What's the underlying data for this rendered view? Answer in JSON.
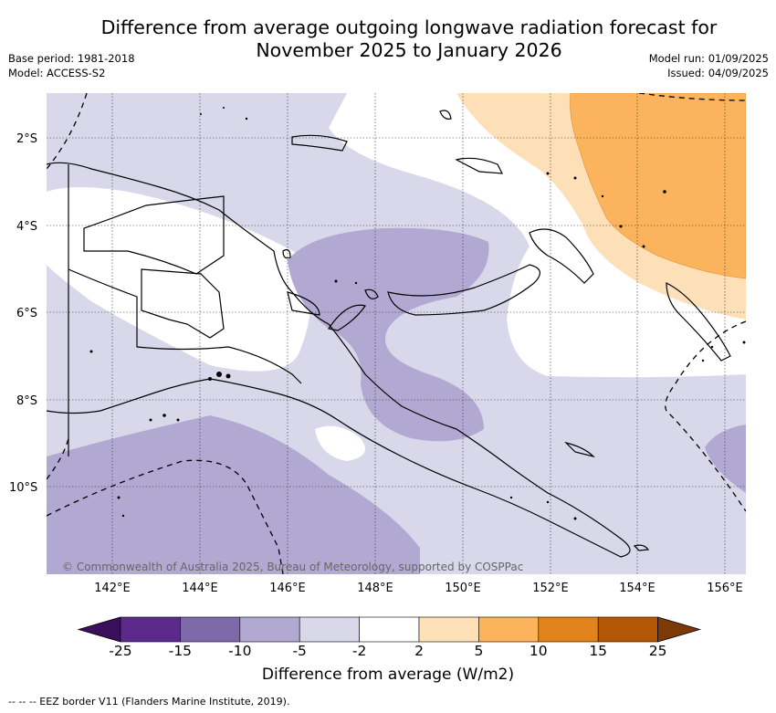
{
  "title_line1": "Difference from average outgoing longwave radiation forecast for",
  "title_line2": "November 2025 to January 2026",
  "base_period": "Base period: 1981-2018",
  "model": "Model: ACCESS-S2",
  "model_run": "Model run: 01/09/2025",
  "issued": "Issued: 04/09/2025",
  "lat_labels": [
    "2°S",
    "4°S",
    "6°S",
    "8°S",
    "10°S"
  ],
  "lon_labels": [
    "142°E",
    "144°E",
    "146°E",
    "148°E",
    "150°E",
    "152°E",
    "154°E",
    "156°E"
  ],
  "copyright": "© Commonwealth of Australia 2025, Bureau of Meteorology, supported by COSPPac",
  "colorbar": {
    "label": "Difference from average (W/m2)",
    "ticks": [
      "-25",
      "-15",
      "-10",
      "-5",
      "-2",
      "2",
      "5",
      "10",
      "15",
      "25"
    ],
    "colors": [
      "#3a0f5c",
      "#5b2a8a",
      "#7e6aa8",
      "#b2a9d2",
      "#d8d8ea",
      "#ffffff",
      "#fde0b7",
      "#fbb35e",
      "#e0831c",
      "#b25607",
      "#7d3a07"
    ]
  },
  "eez_note": "--  --  -- EEZ border V11 (Flanders Marine Institute, 2019)."
}
